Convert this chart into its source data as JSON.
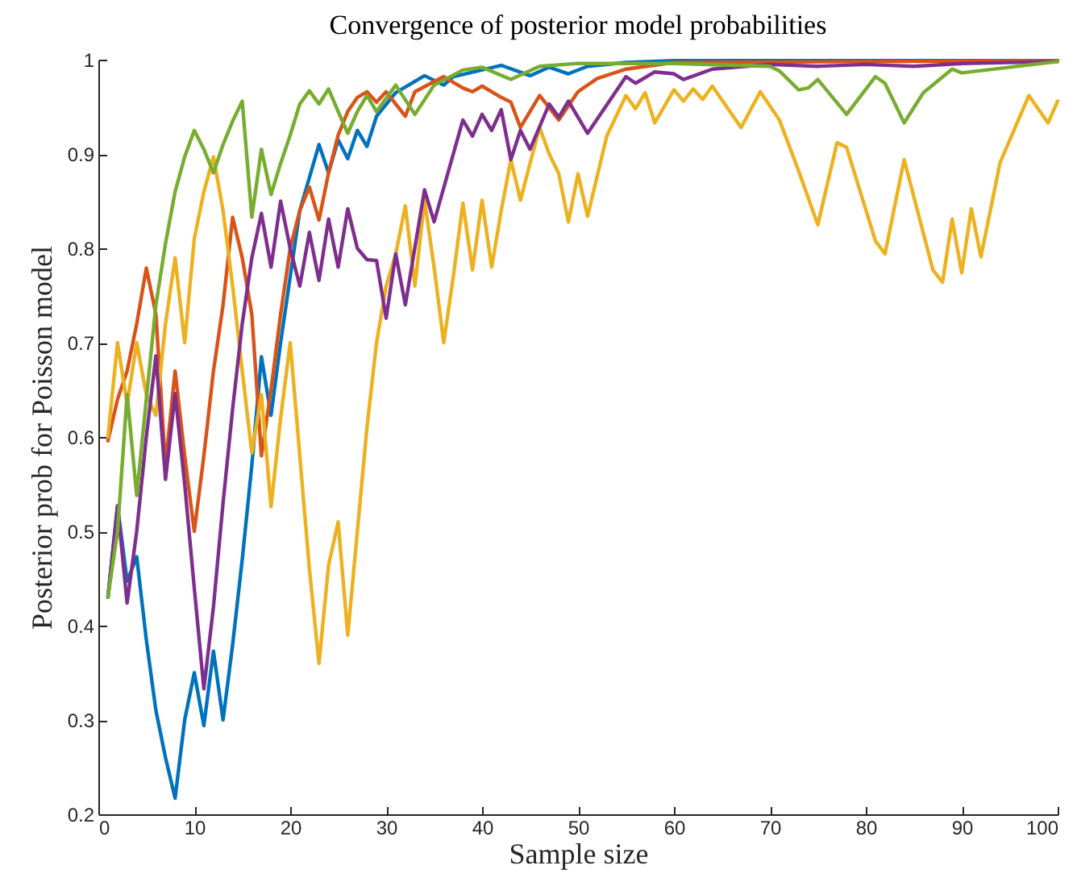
{
  "chart_data": {
    "type": "line",
    "title": "Convergence of posterior model probabilities",
    "xlabel": "Sample size",
    "ylabel": "Posterior prob for Poisson model",
    "xlim": [
      0,
      100
    ],
    "xticks": [
      0,
      10,
      20,
      30,
      40,
      50,
      60,
      70,
      80,
      90,
      100
    ],
    "ylim": [
      0.2,
      1
    ],
    "yticks": [
      0.2,
      0.3,
      0.4,
      0.5,
      0.6,
      0.7,
      0.8,
      0.9,
      1
    ],
    "grid": false,
    "legend": false,
    "marker": "none",
    "line_style": "solid",
    "series": [
      {
        "color": "#0072bd",
        "x": [
          1,
          2,
          3,
          4,
          5,
          6,
          7,
          8,
          9,
          10,
          11,
          12,
          13,
          14,
          15,
          16,
          17,
          18,
          19,
          20,
          21,
          22,
          23,
          24,
          25,
          26,
          27,
          28,
          29,
          31,
          34,
          36,
          37,
          42,
          45,
          47,
          49,
          51,
          55,
          60,
          100
        ],
        "values": [
          0.43,
          0.527,
          0.447,
          0.473,
          0.385,
          0.31,
          0.26,
          0.217,
          0.3,
          0.35,
          0.294,
          0.373,
          0.3,
          0.38,
          0.47,
          0.57,
          0.685,
          0.623,
          0.7,
          0.77,
          0.84,
          0.875,
          0.91,
          0.88,
          0.915,
          0.895,
          0.925,
          0.908,
          0.94,
          0.965,
          0.983,
          0.973,
          0.982,
          0.994,
          0.983,
          0.992,
          0.985,
          0.993,
          0.997,
          0.999,
          0.999
        ]
      },
      {
        "color": "#d95319",
        "x": [
          1,
          2,
          3,
          4,
          5,
          6,
          7,
          8,
          9,
          10,
          11,
          12,
          13,
          14,
          15,
          16,
          17,
          18,
          19,
          20,
          21,
          22,
          23,
          24,
          25,
          26,
          27,
          28,
          29,
          30,
          32,
          33,
          36,
          38,
          39,
          40,
          42,
          43,
          44,
          46,
          48,
          50,
          52,
          55,
          60,
          100
        ],
        "values": [
          0.596,
          0.64,
          0.67,
          0.72,
          0.779,
          0.73,
          0.57,
          0.67,
          0.58,
          0.5,
          0.58,
          0.67,
          0.74,
          0.833,
          0.79,
          0.73,
          0.58,
          0.65,
          0.73,
          0.8,
          0.84,
          0.865,
          0.83,
          0.88,
          0.92,
          0.945,
          0.96,
          0.966,
          0.955,
          0.966,
          0.94,
          0.966,
          0.982,
          0.97,
          0.966,
          0.972,
          0.96,
          0.955,
          0.928,
          0.962,
          0.936,
          0.966,
          0.98,
          0.99,
          0.997,
          0.999
        ]
      },
      {
        "color": "#edb120",
        "x": [
          1,
          2,
          3,
          4,
          5,
          6,
          7,
          8,
          9,
          10,
          11,
          12,
          13,
          14,
          15,
          16,
          17,
          18,
          19,
          20,
          21,
          22,
          23,
          24,
          25,
          26,
          27,
          28,
          29,
          30,
          31,
          32,
          33,
          34,
          35,
          36,
          37,
          38,
          39,
          40,
          41,
          42,
          43,
          44,
          45,
          46,
          47,
          48,
          49,
          50,
          51,
          53,
          55,
          56,
          57,
          58,
          60,
          61,
          62,
          63,
          64,
          67,
          69,
          71,
          73,
          75,
          77,
          78,
          81,
          82,
          84,
          87,
          88,
          89,
          90,
          91,
          92,
          94,
          97,
          99,
          100
        ],
        "values": [
          0.6,
          0.7,
          0.635,
          0.7,
          0.645,
          0.623,
          0.72,
          0.79,
          0.7,
          0.81,
          0.86,
          0.897,
          0.84,
          0.76,
          0.67,
          0.583,
          0.645,
          0.526,
          0.62,
          0.7,
          0.58,
          0.46,
          0.36,
          0.464,
          0.51,
          0.39,
          0.5,
          0.61,
          0.7,
          0.76,
          0.794,
          0.845,
          0.76,
          0.851,
          0.78,
          0.7,
          0.77,
          0.848,
          0.777,
          0.851,
          0.78,
          0.84,
          0.894,
          0.851,
          0.89,
          0.928,
          0.9,
          0.879,
          0.828,
          0.879,
          0.834,
          0.919,
          0.962,
          0.948,
          0.965,
          0.933,
          0.968,
          0.956,
          0.969,
          0.958,
          0.972,
          0.928,
          0.966,
          0.936,
          0.882,
          0.825,
          0.912,
          0.907,
          0.808,
          0.794,
          0.894,
          0.777,
          0.764,
          0.831,
          0.774,
          0.842,
          0.791,
          0.891,
          0.962,
          0.933,
          0.956
        ]
      },
      {
        "color": "#7e2f8e",
        "x": [
          1,
          2,
          3,
          4,
          5,
          6,
          7,
          8,
          9,
          10,
          11,
          12,
          13,
          14,
          15,
          16,
          17,
          18,
          19,
          20,
          21,
          22,
          23,
          24,
          25,
          26,
          27,
          28,
          29,
          30,
          31,
          32,
          34,
          35,
          38,
          39,
          40,
          41,
          42,
          43,
          44,
          45,
          47,
          48,
          49,
          51,
          55,
          56,
          58,
          60,
          61,
          64,
          70,
          75,
          80,
          85,
          90,
          100
        ],
        "values": [
          0.43,
          0.527,
          0.424,
          0.5,
          0.6,
          0.686,
          0.555,
          0.646,
          0.55,
          0.44,
          0.333,
          0.42,
          0.53,
          0.63,
          0.72,
          0.79,
          0.837,
          0.78,
          0.85,
          0.8,
          0.76,
          0.817,
          0.766,
          0.831,
          0.78,
          0.842,
          0.8,
          0.788,
          0.787,
          0.726,
          0.794,
          0.74,
          0.862,
          0.828,
          0.936,
          0.919,
          0.942,
          0.925,
          0.947,
          0.894,
          0.925,
          0.905,
          0.953,
          0.939,
          0.956,
          0.922,
          0.982,
          0.975,
          0.987,
          0.985,
          0.979,
          0.99,
          0.995,
          0.993,
          0.995,
          0.993,
          0.996,
          0.998
        ]
      },
      {
        "color": "#77ac30",
        "x": [
          1,
          2,
          3,
          4,
          5,
          6,
          7,
          8,
          9,
          10,
          11,
          12,
          13,
          14,
          15,
          16,
          17,
          18,
          19,
          20,
          21,
          22,
          23,
          24,
          25,
          26,
          27,
          28,
          29,
          31,
          33,
          35,
          38,
          40,
          43,
          46,
          50,
          60,
          70,
          71,
          73,
          74,
          75,
          78,
          81,
          82,
          84,
          86,
          89,
          90,
          95,
          100
        ],
        "values": [
          0.43,
          0.5,
          0.645,
          0.538,
          0.64,
          0.74,
          0.805,
          0.86,
          0.897,
          0.925,
          0.905,
          0.88,
          0.91,
          0.935,
          0.956,
          0.833,
          0.905,
          0.857,
          0.89,
          0.92,
          0.953,
          0.967,
          0.953,
          0.969,
          0.945,
          0.922,
          0.945,
          0.962,
          0.945,
          0.973,
          0.942,
          0.973,
          0.989,
          0.992,
          0.979,
          0.993,
          0.996,
          0.996,
          0.993,
          0.988,
          0.968,
          0.97,
          0.979,
          0.942,
          0.982,
          0.975,
          0.933,
          0.965,
          0.99,
          0.986,
          0.992,
          0.998
        ]
      }
    ]
  }
}
